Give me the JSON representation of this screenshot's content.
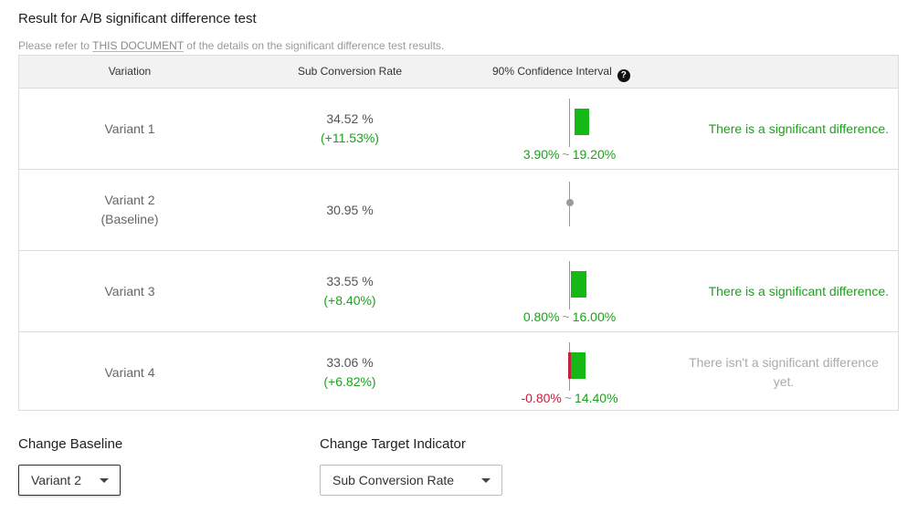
{
  "header": {
    "title": "Result for A/B significant difference test",
    "note_prefix": "Please refer to",
    "note_link": "THIS DOCUMENT",
    "note_suffix": "of the details on the significant difference test results."
  },
  "table": {
    "columns": {
      "variation": "Variation",
      "rate": "Sub Conversion Rate",
      "ci": "90% Confidence Interval"
    },
    "help_icon": "?",
    "rows": [
      {
        "name": "Variant 1",
        "rate": "34.52 %",
        "diff": "(+11.53%)",
        "ci_low": "3.90%",
        "ci_sep": "~",
        "ci_high": "19.20%",
        "verdict": "There is a significant difference."
      },
      {
        "name": "Variant 2",
        "name_sub": "(Baseline)",
        "rate": "30.95 %"
      },
      {
        "name": "Variant 3",
        "rate": "33.55 %",
        "diff": "(+8.40%)",
        "ci_low": "0.80%",
        "ci_sep": "~",
        "ci_high": "16.00%",
        "verdict": "There is a significant difference."
      },
      {
        "name": "Variant 4",
        "rate": "33.06 %",
        "diff": "(+6.82%)",
        "ci_low": "-0.80%",
        "ci_sep": "~",
        "ci_high": "14.40%",
        "verdict": "There isn't a significant difference yet."
      }
    ]
  },
  "controls": {
    "baseline_label": "Change Baseline",
    "baseline_value": "Variant 2",
    "indicator_label": "Change Target Indicator",
    "indicator_value": "Sub Conversion Rate"
  },
  "colors": {
    "positive": "#1aa31a",
    "negative": "#c4203f",
    "bar": "#16b816",
    "muted": "#aaaaaa"
  }
}
